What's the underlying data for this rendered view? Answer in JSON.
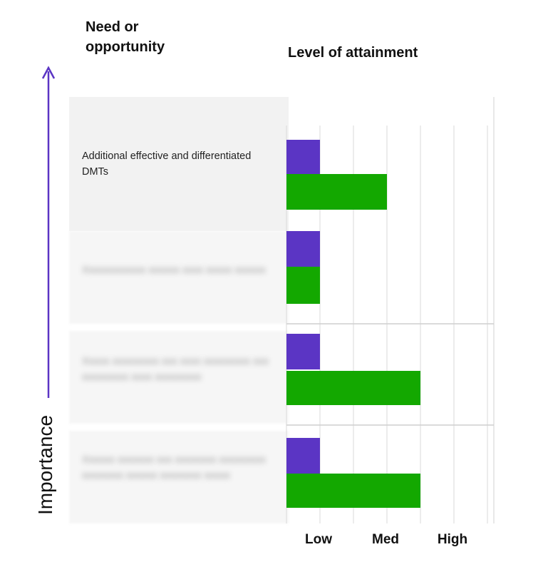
{
  "headers": {
    "need": [
      "Need or",
      "opportunity"
    ],
    "level": "Level of attainment"
  },
  "axis": {
    "importance_label": "Importance",
    "arrow_color": "#5b35c4"
  },
  "rows": [
    {
      "label": "Additional effective and differentiated DMTs",
      "blurred": false
    },
    {
      "label": "Xxxxxxxxxxxx xxxxxx xxxx xxxxx xxxxxx",
      "blurred": true
    },
    {
      "label": "Xxxxx xxxxxxxxx xxx xxxx xxxxxxxxx xxx xxxxxxxxx xxxx xxxxxxxxx",
      "blurred": true
    },
    {
      "label": "Xxxxxx xxxxxxx xxx xxxxxxxx xxxxxxxxx xxxxxxxx xxxxxx xxxxxxxx xxxxx",
      "blurred": true
    }
  ],
  "chart_data": {
    "type": "bar",
    "orientation": "horizontal",
    "categories": [
      "Additional effective and differentiated DMTs",
      "",
      "",
      ""
    ],
    "series": [
      {
        "values": [
          0.5,
          0.5,
          0.5,
          0.5
        ],
        "color": "#5b35c4"
      },
      {
        "values": [
          1.5,
          0.5,
          2.0,
          2.0
        ],
        "color": "#13a800"
      }
    ],
    "x_ticks": [
      {
        "value": 0.5,
        "label": "Low"
      },
      {
        "value": 1.5,
        "label": "Med"
      },
      {
        "value": 2.5,
        "label": "High"
      }
    ],
    "xlim": [
      0,
      3.1
    ],
    "grid": true
  }
}
